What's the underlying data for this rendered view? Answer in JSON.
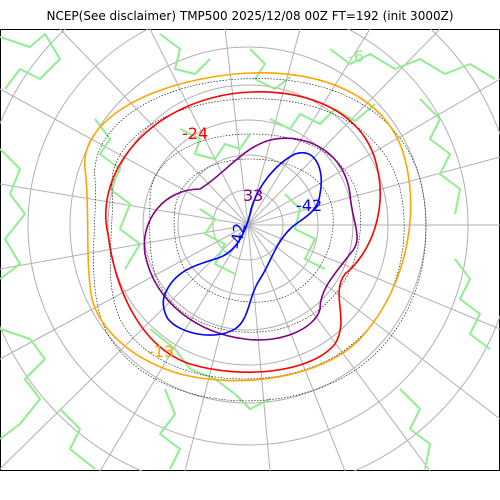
{
  "title": "NCEP(See disclaimer) TMP500 2025/12/08 00Z FT=192 (init 3000Z)",
  "map": {
    "projection": "north-polar-stereographic",
    "field": "TMP500",
    "colors": {
      "coastline": "#90ee90",
      "grid": "#b0b0b0",
      "contour_gray": "#000000",
      "orange": "#ffa500",
      "red": "#ff0000",
      "purple": "#800080",
      "blue": "#0000ff"
    },
    "contours": [
      {
        "color_name": "orange",
        "level_label": "-13"
      },
      {
        "color_name": "red",
        "level_label": ""
      },
      {
        "color_name": "purple",
        "level_label": "33"
      },
      {
        "color_name": "blue",
        "level_label": "-42"
      }
    ],
    "labels": {
      "orange": "-13",
      "red": "-24",
      "purple": "33",
      "blue_a": "-42",
      "blue_b": "-42",
      "blue_c": "-42",
      "green": "-6"
    }
  }
}
